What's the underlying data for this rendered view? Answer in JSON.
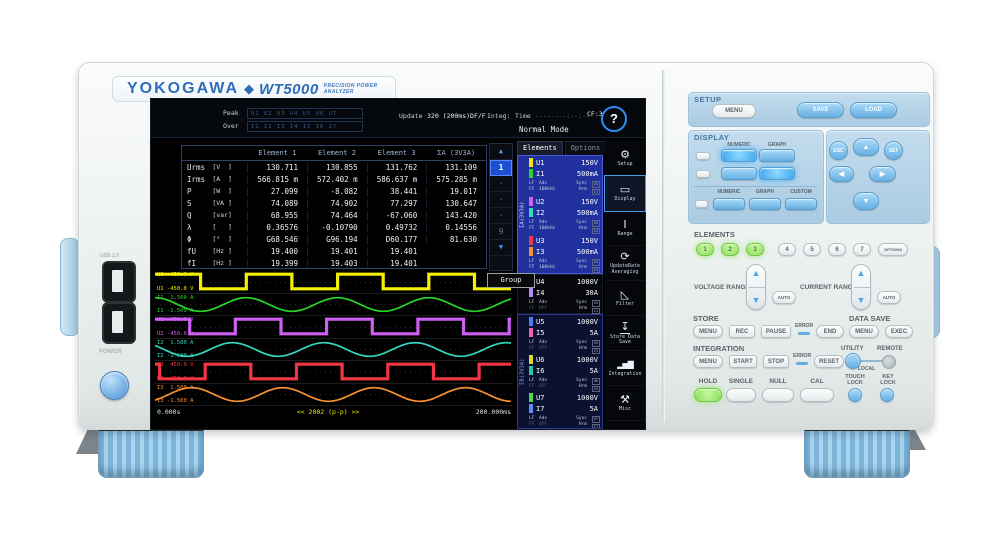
{
  "branding": {
    "maker": "YOKOGAWA",
    "diamond": "◆",
    "model": "WT5000",
    "tagline": "PRECISION POWER ANALYZER"
  },
  "left_panel": {
    "usb_label": "USB 2.0",
    "power_label": "POWER"
  },
  "colors": {
    "brand_blue": "#2f6db8",
    "lit_blue": "#3fa6ee",
    "key_green": "#8ade5a",
    "panel_blue": "#b7d3e7"
  },
  "screen": {
    "status": {
      "peak_label": "Peak",
      "over_label": "Over",
      "peak_channels": "U1 U2 U3 U4 U5 U6 U7",
      "over_channels": "I1 I2 I3 I4 I5 I6 I7",
      "update_label": "Update",
      "update_value": "320 (200ms)DF/F",
      "integ_label": "Integ:",
      "time_label": "Time",
      "time_value": "--------:--:--"
    },
    "mode": "Normal Mode",
    "cf": "CF:3",
    "help": "?",
    "tabs": {
      "elements": "Elements",
      "options": "Options"
    },
    "table": {
      "headers": [
        "Element 1",
        "Element 2",
        "Element 3",
        "ΣA (3V3A)"
      ],
      "rows": [
        {
          "name": "Urms",
          "unit": "[V  ]",
          "v": [
            "130.711",
            "130.855",
            "131.762",
            "131.109"
          ]
        },
        {
          "name": "Irms",
          "unit": "[A  ]",
          "v": [
            "566.815 m",
            "572.402 m",
            "586.637 m",
            "575.285 m"
          ]
        },
        {
          "name": "P",
          "unit": "[W  ]",
          "v": [
            "27.099",
            "-8.082",
            "38.441",
            "19.017"
          ]
        },
        {
          "name": "S",
          "unit": "[VA ]",
          "v": [
            "74.089",
            "74.902",
            "77.297",
            "130.647"
          ]
        },
        {
          "name": "Q",
          "unit": "[var]",
          "v": [
            "68.955",
            "74.464",
            "-67.060",
            "143.420"
          ]
        },
        {
          "name": "λ",
          "unit": "[   ]",
          "v": [
            "0.36576",
            "-0.10790",
            "0.49732",
            "0.14556"
          ]
        },
        {
          "name": "Φ",
          "unit": "[°  ]",
          "v": [
            "G68.546",
            "G96.194",
            "D60.177",
            "81.630"
          ]
        },
        {
          "name": "fU",
          "unit": "[Hz ]",
          "v": [
            "19.400",
            "19.401",
            "19.401",
            ""
          ]
        },
        {
          "name": "fI",
          "unit": "[Hz ]",
          "v": [
            "19.399",
            "19.403",
            "19.401",
            ""
          ]
        }
      ]
    },
    "pager": {
      "up": "▲",
      "current": "1",
      "dots": [
        "·",
        "·",
        "·"
      ],
      "last": "9",
      "down": "▼"
    },
    "groups": {
      "a": "ΣA(3V3A)",
      "el4": "4",
      "b": "ΣB(3V3A)"
    },
    "elements": [
      {
        "u": "U1",
        "u_range": "150V",
        "u_color": "#f2e500",
        "i": "I1",
        "i_range": "500mA",
        "i_color": "#2bd42b",
        "lf": "LF",
        "ff": "FF",
        "adv": "Adv",
        "freq": "100kHz",
        "sync": "Sync",
        "hrm": "Hrm"
      },
      {
        "u": "U2",
        "u_range": "150V",
        "u_color": "#cf5ff2",
        "i": "I2",
        "i_range": "500mA",
        "i_color": "#35d8c0",
        "lf": "LF",
        "ff": "FF",
        "adv": "Adv",
        "freq": "100kHz",
        "sync": "Sync",
        "hrm": "Hrm"
      },
      {
        "u": "U3",
        "u_range": "150V",
        "u_color": "#f23545",
        "i": "I3",
        "i_range": "500mA",
        "i_color": "#f79233",
        "lf": "LF",
        "ff": "FF",
        "adv": "Adv",
        "freq": "100kHz",
        "sync": "Sync",
        "hrm": "Hrm"
      },
      {
        "u": "U4",
        "u_range": "1000V",
        "u_color": "#35c8e8",
        "i": "I4",
        "i_range": "30A",
        "i_color": "#b08df5",
        "lf": "LF",
        "ff": "FF",
        "adv": "Adv",
        "freq": "OFF",
        "sync": "Sync",
        "hrm": "Hrm"
      },
      {
        "u": "U5",
        "u_range": "1000V",
        "u_color": "#4f7df2",
        "i": "I5",
        "i_range": "5A",
        "i_color": "#f55fb0",
        "lf": "LF",
        "ff": "FF",
        "adv": "Adv",
        "freq": "OFF",
        "sync": "Sync",
        "hrm": "Hrm"
      },
      {
        "u": "U6",
        "u_range": "1000V",
        "u_color": "#d8d829",
        "i": "I6",
        "i_range": "5A",
        "i_color": "#2bc8a8",
        "lf": "LF",
        "ff": "FF",
        "adv": "Adv",
        "freq": "OFF",
        "sync": "Sync",
        "hrm": "Hrm"
      },
      {
        "u": "U7",
        "u_range": "1000V",
        "u_color": "#4fd84f",
        "i": "I7",
        "i_range": "5A",
        "i_color": "#5f8df5",
        "lf": "LF",
        "ff": "FF",
        "adv": "Adv",
        "freq": "OFF",
        "sync": "Sync",
        "hrm": "Hrm"
      }
    ],
    "menu": [
      {
        "icon": "gear-icon",
        "glyph": "⚙",
        "label": "Setup"
      },
      {
        "icon": "display-icon",
        "glyph": "▭",
        "label": "Display"
      },
      {
        "icon": "range-icon",
        "glyph": "Ⅰ",
        "label": "Range"
      },
      {
        "icon": "update-averaging-icon",
        "glyph": "⟳",
        "label": "UpdateRate Averaging"
      },
      {
        "icon": "filter-icon",
        "glyph": "◺",
        "label": "Filter"
      },
      {
        "icon": "store-icon",
        "glyph": "↧",
        "label": "Store Data Save"
      },
      {
        "icon": "integration-icon",
        "glyph": "▂▅▇",
        "label": "Integration"
      },
      {
        "icon": "misc-icon",
        "glyph": "⚒",
        "label": "Misc"
      }
    ],
    "waveform": {
      "group_button": "Group",
      "time_start": "0.000s",
      "time_center": "<< 2002 (p-p) >>",
      "time_end": "200.000ms",
      "cycles": 3.9,
      "tracks": [
        {
          "type": "square",
          "color": "#f5f000",
          "phase": 0.0,
          "label_top": "U1  450.0 V",
          "label_bottom": "U1 -450.0 V"
        },
        {
          "type": "sine",
          "color": "#2bd42b",
          "phase": 0.25,
          "label_top": "I1  1.500 A",
          "label_bottom": "I1 -1.500 A"
        },
        {
          "type": "square",
          "color": "#cf5ff2",
          "phase": 0.12,
          "label_top": "U2  450.0 V",
          "label_bottom": "U2 -450.0 V"
        },
        {
          "type": "sine",
          "color": "#35d8c0",
          "phase": 0.4,
          "label_top": "I2  1.500 A",
          "label_bottom": "I2 -1.500 A"
        },
        {
          "type": "square",
          "color": "#f23545",
          "phase": 0.45,
          "label_top": "U3  450.0 V",
          "label_bottom": "U3 -450.0 V"
        },
        {
          "type": "sine",
          "color": "#f79233",
          "phase": 0.85,
          "label_top": "I3  1.500 A",
          "label_bottom": "I3 -1.500 A"
        }
      ]
    }
  },
  "controls": {
    "setup": {
      "title": "SETUP",
      "menu": "MENU",
      "save": "SAVE",
      "load": "LOAD"
    },
    "display": {
      "title": "DISPLAY",
      "numeric": "NUMERIC",
      "graph": "GRAPH",
      "custom": "CUSTOM"
    },
    "nav": {
      "esc": "ESC",
      "set": "SET",
      "up": "▲",
      "down": "▼",
      "left": "◀",
      "right": "▶"
    },
    "rocker": {
      "up": "▲",
      "down": "▼"
    },
    "elements": {
      "title": "ELEMENTS",
      "keys": [
        "1",
        "2",
        "3",
        "4",
        "5",
        "6",
        "7"
      ],
      "options": "OPTIONS"
    },
    "voltage_range": {
      "title": "VOLTAGE RANGE",
      "auto": "AUTO"
    },
    "current_range": {
      "title": "CURRENT RANGE",
      "auto": "AUTO"
    },
    "store": {
      "title": "STORE",
      "menu": "MENU",
      "rec": "REC",
      "pause": "PAUSE",
      "error": "ERROR",
      "end": "END"
    },
    "data_save": {
      "title": "DATA SAVE",
      "menu": "MENU",
      "exec": "EXEC"
    },
    "integration": {
      "title": "INTEGRATION",
      "menu": "MENU",
      "start": "START",
      "stop": "STOP",
      "error": "ERROR",
      "reset": "RESET"
    },
    "utility": {
      "utility": "UTILITY",
      "remote": "REMOTE",
      "local": "LOCAL"
    },
    "hold": "HOLD",
    "single": "SINGLE",
    "null_label": "NULL",
    "cal": "CAL",
    "touch_lock": "TOUCH LOCK",
    "key_lock": "KEY LOCK"
  }
}
